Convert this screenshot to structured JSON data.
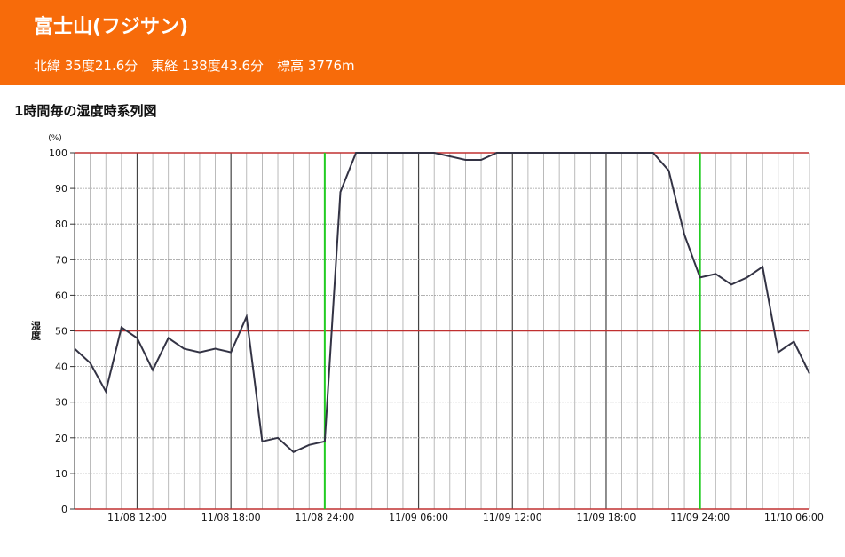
{
  "header": {
    "title": "富士山(フジサン)",
    "subtitle": "北緯 35度21.6分　東経 138度43.6分　標高 3776m"
  },
  "chart_data": {
    "type": "line",
    "title": "1時間毎の湿度時系列図",
    "ylabel": "湿度",
    "yunit": "(%)",
    "categories": [
      null,
      null,
      null,
      null,
      "11/08 12:00",
      null,
      null,
      null,
      null,
      null,
      "11/08 18:00",
      null,
      null,
      null,
      null,
      null,
      "11/08 24:00",
      null,
      null,
      null,
      null,
      null,
      "11/09 06:00",
      null,
      null,
      null,
      null,
      null,
      "11/09 12:00",
      null,
      null,
      null,
      null,
      null,
      "11/09 18:00",
      null,
      null,
      null,
      null,
      null,
      "11/09 24:00",
      null,
      null,
      null,
      null,
      null,
      "11/10 06:00",
      null
    ],
    "series": [
      {
        "name": "湿度",
        "color": "#333344",
        "values": [
          45,
          41,
          33,
          51,
          48,
          39,
          48,
          45,
          44,
          45,
          44,
          54,
          19,
          20,
          16,
          18,
          19,
          89,
          100,
          100,
          100,
          100,
          100,
          100,
          99,
          98,
          98,
          100,
          100,
          100,
          100,
          100,
          100,
          100,
          100,
          100,
          100,
          100,
          95,
          77,
          65,
          66,
          63,
          65,
          68,
          44,
          47,
          38
        ]
      }
    ],
    "ylim": [
      0,
      100
    ],
    "yticks": [
      0,
      10,
      20,
      30,
      40,
      50,
      60,
      70,
      80,
      90,
      100
    ],
    "grid": true,
    "hlines": [
      {
        "value": 50,
        "color": "#c03030"
      }
    ],
    "vlines": [
      {
        "index": 16,
        "color": "#22cc22"
      },
      {
        "index": 40,
        "color": "#22cc22"
      }
    ]
  }
}
